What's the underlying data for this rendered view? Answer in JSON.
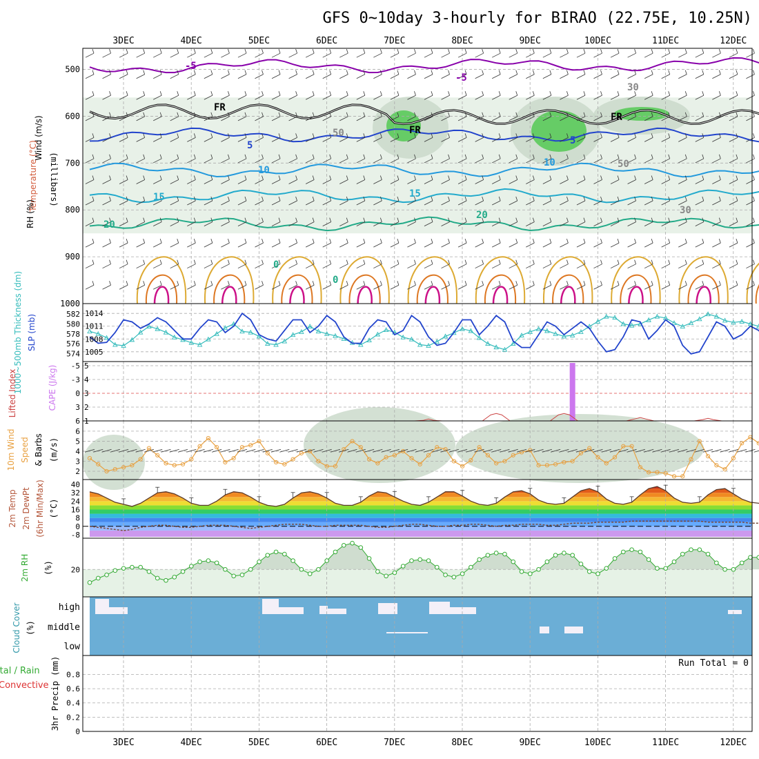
{
  "title": "GFS 0~10day 3-hourly for BIRAO (22.75E, 10.25N)",
  "date_labels": [
    "3DEC",
    "4DEC",
    "5DEC",
    "6DEC",
    "7DEC",
    "8DEC",
    "9DEC",
    "10DEC",
    "11DEC",
    "12DEC"
  ],
  "colors": {
    "grid": "#aaaaaa",
    "rh_light": "#e6f0e6",
    "rh_mid": "#c8d8c8",
    "rh_dark": "#a7b9a7",
    "rh_green": "#66cc66",
    "slp": "#2244cc",
    "thickness": "#33bbbb",
    "cape": "#cc77ee",
    "lifted": "#cc4444",
    "wind_speed": "#e8a040",
    "rh2m": "#33aa33",
    "cloud": "#6baed6",
    "cloud_gap": "#f4f0f8"
  },
  "panels": {
    "upper": {
      "y_title": "(millibars)",
      "label_wind": "Wind (m/s)",
      "label_temp": "Temperature (°C)",
      "label_rh": "RH (%)",
      "y_ticks": [
        "500",
        "600",
        "700",
        "800",
        "900",
        "1000"
      ],
      "contour_labels": [
        "-5",
        "-5",
        "FR",
        "FR",
        "FR",
        "5",
        "5",
        "10",
        "10",
        "15",
        "15",
        "20",
        "20",
        "0",
        "0",
        "30",
        "30",
        "50",
        "50"
      ]
    },
    "slp": {
      "label_thick": "1000~500mb Thickness (dm)",
      "label_slp": "SLP (mb)",
      "left_ticks": [
        "582",
        "580",
        "578",
        "576",
        "574"
      ],
      "right_ticks": [
        "1014",
        "1011",
        "1008",
        "1005"
      ]
    },
    "cape": {
      "label_lifted": "Lifted Index",
      "label_cape": "CAPE (J/kg)",
      "left_ticks": [
        "-5",
        "-3",
        "0",
        "3",
        "6"
      ],
      "right_ticks": [
        "5",
        "4",
        "3",
        "2",
        "1"
      ]
    },
    "wind10": {
      "label_a": "10m Wind",
      "label_b": "Speed",
      "label_c": "& Barbs",
      "unit": "(m/s)",
      "ticks": [
        "6",
        "5",
        "4",
        "3",
        "2"
      ]
    },
    "temp2m": {
      "label_a": "2m Temp",
      "label_b": "2m DewPt",
      "label_c": "(6hr Min/Max)",
      "unit": "(°C)",
      "ticks": [
        "40",
        "32",
        "24",
        "16",
        "8",
        "0",
        "-8"
      ]
    },
    "rh2m": {
      "label": "2m RH",
      "unit": "(%)",
      "ticks": [
        "20"
      ]
    },
    "cloud": {
      "label": "Cloud Cover",
      "unit": "(%)",
      "levels": [
        "high",
        "middle",
        "low"
      ]
    },
    "precip": {
      "label_a": "Total / Rain",
      "label_b": "Convective",
      "label_c": "3hr Precip (mm)",
      "run_total": "Run Total = 0",
      "ticks": [
        "0.8",
        "0.6",
        "0.4",
        "0.2",
        "0"
      ]
    }
  },
  "chart_data": {
    "type": "line",
    "x_start": "2DEC 12Z",
    "x_step_hours": 3,
    "slp_mb": [
      1008.5,
      1007,
      1007.2,
      1009.5,
      1012.5,
      1012,
      1010.5,
      1011.5,
      1013,
      1012,
      1010,
      1008,
      1008,
      1010.5,
      1012.5,
      1012,
      1009.5,
      1011,
      1014,
      1012.5,
      1009,
      1008,
      1007.5,
      1010,
      1012.5,
      1012.5,
      1009.5,
      1011,
      1013.5,
      1012,
      1008.5,
      1007,
      1007,
      1010.5,
      1012.5,
      1012,
      1009,
      1010,
      1013.5,
      1012,
      1008.5,
      1006.5,
      1007,
      1009.5,
      1012.5,
      1012.5,
      1009,
      1011,
      1013.5,
      1012,
      1007.5,
      1006,
      1006,
      1009,
      1012,
      1011,
      1009,
      1010.5,
      1012,
      1010.5,
      1007.5,
      1005,
      1005.5,
      1008.5,
      1012.5,
      1012,
      1008,
      1010,
      1012.5,
      1011,
      1006.5,
      1004.5,
      1005,
      1008.5,
      1012,
      1011,
      1008,
      1009,
      1011,
      1010,
      1007,
      1006,
      1006.5,
      1009,
      1011.5,
      1011,
      1007.5,
      1009.5,
      1012,
      1011.5,
      1007.5,
      1007.5,
      1008.5,
      1009,
      1011.5
    ],
    "thickness_dm": [
      578.5,
      578,
      577.2,
      575.8,
      575.6,
      576.8,
      578.3,
      579.5,
      579,
      578.3,
      577.3,
      576.8,
      576.2,
      575.8,
      576.9,
      578,
      579.2,
      580,
      578.5,
      578.3,
      577.5,
      576,
      575.8,
      576.5,
      577.8,
      578.4,
      579.5,
      578.5,
      578,
      577.6,
      577,
      576.2,
      575.8,
      576.7,
      577.9,
      578.8,
      578.3,
      577.3,
      576.9,
      575.8,
      575.6,
      576.4,
      577.5,
      578.2,
      579,
      578.6,
      577.2,
      576,
      575.3,
      574.8,
      576,
      577.7,
      578.4,
      579,
      578.6,
      578,
      577.5,
      577.7,
      578.4,
      579.5,
      580.5,
      581.5,
      581.3,
      580,
      579.7,
      580,
      580.8,
      581.5,
      581.2,
      580.2,
      579.5,
      580.2,
      581,
      582,
      581.5,
      580.7,
      580.3,
      580.5,
      580,
      579.5,
      579.2,
      579.8,
      580.5,
      581.3,
      580.6,
      580.3,
      579.6,
      578.8,
      578.4,
      578.5,
      579,
      578.3,
      577.8,
      577.4,
      576.8
    ],
    "cape_jkg": [
      {
        "time": "9DEC 15Z",
        "value": 5.2
      }
    ],
    "lifted_index_peaks": [
      {
        "time": "7DEC 12Z",
        "value": 4.8
      },
      {
        "time": "8DEC 12Z",
        "value": 2.5
      },
      {
        "time": "9DEC 12Z",
        "value": 2.5
      },
      {
        "time": "10DEC 15Z",
        "value": 4.2
      },
      {
        "time": "11DEC 15Z",
        "value": 4.5
      }
    ],
    "wind10_ms": [
      3.3,
      2.7,
      2,
      2.2,
      2.4,
      2.6,
      3.2,
      4.3,
      3.6,
      2.8,
      2.6,
      2.7,
      3.2,
      4.5,
      5.3,
      4.4,
      2.9,
      3.3,
      4.4,
      4.6,
      5,
      3.8,
      2.9,
      2.7,
      3.2,
      3.8,
      4,
      3,
      2.5,
      2.5,
      4.2,
      5,
      4.4,
      3.2,
      2.8,
      3.4,
      3.6,
      4,
      3.3,
      2.7,
      3.6,
      4.4,
      4.2,
      3,
      2.5,
      3.1,
      4.4,
      3.6,
      2.8,
      3,
      3.6,
      3.9,
      4.1,
      2.6,
      2.6,
      2.7,
      2.9,
      3,
      3.8,
      4.3,
      3.4,
      2.8,
      3.4,
      4.5,
      4.5,
      2.4,
      1.9,
      1.9,
      1.8,
      1.5,
      1.5,
      3.2,
      5,
      3.5,
      2.6,
      2.2,
      3.3,
      4.8,
      5.4,
      4.8,
      4.4,
      4.3,
      4.3,
      3.8,
      4.6,
      6,
      6,
      4.6,
      3.8,
      3.8,
      2.8,
      2.9,
      3,
      3.5,
      3.8
    ],
    "temp2m_c": [
      33,
      31,
      27,
      23,
      21,
      19,
      22,
      27,
      32,
      33,
      31,
      27,
      22,
      20,
      20,
      24,
      30,
      33,
      32,
      28,
      23,
      20,
      19,
      21,
      27,
      32,
      33,
      31,
      27,
      22,
      20,
      20,
      23,
      29,
      33,
      32,
      28,
      24,
      21,
      20,
      23,
      28,
      33,
      33,
      29,
      24,
      21,
      20,
      22,
      28,
      33,
      34,
      31,
      25,
      22,
      21,
      22,
      28,
      34,
      36,
      33,
      26,
      22,
      21,
      23,
      30,
      36,
      38,
      34,
      27,
      23,
      22,
      23,
      30,
      35,
      36,
      31,
      26,
      23,
      22,
      24,
      30,
      35,
      36,
      32,
      26,
      23,
      22,
      23,
      28,
      31,
      30,
      27,
      24,
      22
    ],
    "dewpt2m_c": [
      0,
      -1,
      -2,
      -3,
      -4,
      -3,
      -1,
      0,
      1,
      1,
      0,
      -1,
      -1,
      0,
      1,
      1,
      1,
      0,
      -1,
      -2,
      -1,
      0,
      1,
      2,
      2,
      2,
      1,
      0,
      0,
      1,
      1,
      1,
      1,
      0,
      -1,
      -1,
      0,
      1,
      2,
      2,
      1,
      0,
      0,
      1,
      1,
      2,
      2,
      1,
      0,
      1,
      1,
      2,
      2,
      2,
      1,
      1,
      2,
      3,
      3,
      3,
      4,
      4,
      4,
      4,
      5,
      5,
      5,
      5,
      5,
      5,
      5,
      5,
      5,
      4,
      4,
      4,
      4,
      4,
      3,
      3,
      3,
      2,
      1,
      0,
      -1,
      -1,
      -2,
      -2,
      -2,
      -3,
      -3,
      -3,
      -3,
      -3,
      -3
    ],
    "rh2m_pct": [
      8,
      12,
      15,
      19,
      21,
      22,
      22,
      18,
      12,
      10,
      13,
      18,
      23,
      27,
      28,
      26,
      20,
      14,
      15,
      20,
      27,
      33,
      36,
      34,
      28,
      20,
      16,
      20,
      28,
      36,
      42,
      44,
      40,
      30,
      18,
      14,
      17,
      23,
      28,
      29,
      28,
      22,
      15,
      13,
      16,
      22,
      29,
      33,
      35,
      34,
      27,
      18,
      16,
      20,
      27,
      33,
      35,
      33,
      25,
      18,
      16,
      21,
      30,
      36,
      38,
      36,
      29,
      21,
      21,
      27,
      34,
      38,
      38,
      34,
      26,
      20,
      20,
      26,
      31,
      31,
      28,
      22,
      16,
      14,
      18,
      24,
      28,
      28,
      24,
      18,
      16,
      20,
      24,
      24,
      23,
      22
    ]
  }
}
